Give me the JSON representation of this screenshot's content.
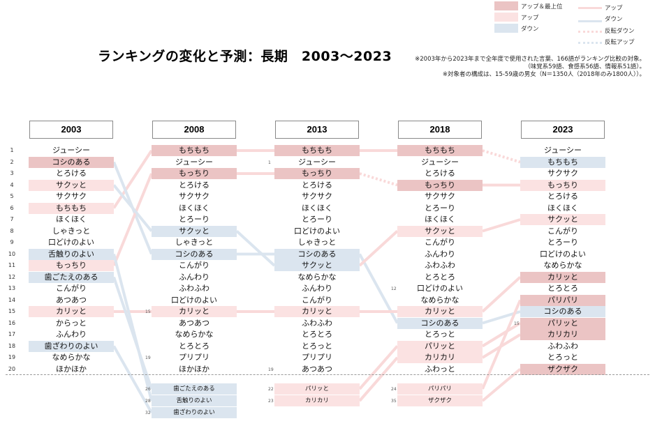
{
  "title": "ランキングの変化と予測：長期　2003〜2023",
  "notes": [
    "※2003年から2023年まで全年度で使用された言葉、166語がランキング比較の対象。",
    "（味覚系59語、食感系56語、情報系51語）。",
    "※対象者の構成は、15-59歳の男女（N＝1350人（2018年のみ1800人））。"
  ],
  "legend": {
    "up_best": "アップ＆最上位",
    "up": "アップ",
    "down": "ダウン",
    "line_up": "アップ",
    "line_down": "ダウン",
    "line_rev_down": "反転ダウン",
    "line_rev_up": "反転アップ"
  },
  "colors": {
    "up_best": "#ebc4c4",
    "up": "#fbe2e2",
    "down": "#dbe5ef",
    "line_up": "#f9d9d9",
    "line_down": "#dbe5ef"
  },
  "chart_data": {
    "type": "table",
    "years": [
      "2003",
      "2008",
      "2013",
      "2018",
      "2023"
    ],
    "rank_numbers": [
      "1",
      "2",
      "3",
      "4",
      "5",
      "6",
      "7",
      "8",
      "9",
      "10",
      "11",
      "12",
      "13",
      "14",
      "15",
      "16",
      "17",
      "18",
      "19",
      "20"
    ],
    "columns": [
      {
        "items": [
          {
            "label": "ジューシー",
            "hl": ""
          },
          {
            "label": "コシのある",
            "hl": "red"
          },
          {
            "label": "とろける",
            "hl": ""
          },
          {
            "label": "サクッと",
            "hl": "pink"
          },
          {
            "label": "サクサク",
            "hl": ""
          },
          {
            "label": "もちもち",
            "hl": "pink"
          },
          {
            "label": "ほくほく",
            "hl": ""
          },
          {
            "label": "しゃきっと",
            "hl": ""
          },
          {
            "label": "口どけのよい",
            "hl": ""
          },
          {
            "label": "舌触りのよい",
            "hl": "blue"
          },
          {
            "label": "もっちり",
            "hl": "pink"
          },
          {
            "label": "歯ごたえのある",
            "hl": "blue"
          },
          {
            "label": "こんがり",
            "hl": ""
          },
          {
            "label": "あつあつ",
            "hl": ""
          },
          {
            "label": "カリッと",
            "hl": "pink"
          },
          {
            "label": "からっと",
            "hl": ""
          },
          {
            "label": "ふんわり",
            "hl": ""
          },
          {
            "label": "歯ざわりのよい",
            "hl": "blue"
          },
          {
            "label": "なめらかな",
            "hl": ""
          },
          {
            "label": "ほかほか",
            "hl": ""
          }
        ],
        "below": []
      },
      {
        "items": [
          {
            "label": "もちもち",
            "hl": "red"
          },
          {
            "label": "ジューシー",
            "hl": ""
          },
          {
            "label": "もっちり",
            "hl": "red"
          },
          {
            "label": "とろける",
            "hl": ""
          },
          {
            "label": "サクサク",
            "hl": ""
          },
          {
            "label": "ほくほく",
            "hl": ""
          },
          {
            "label": "とろーり",
            "hl": ""
          },
          {
            "label": "サクッと",
            "hl": "blue"
          },
          {
            "label": "しゃきっと",
            "hl": ""
          },
          {
            "label": "コシのある",
            "hl": "blue"
          },
          {
            "label": "こんがり",
            "hl": ""
          },
          {
            "label": "ふんわり",
            "hl": ""
          },
          {
            "label": "ふわふわ",
            "hl": ""
          },
          {
            "label": "口どけのよい",
            "hl": ""
          },
          {
            "label": "カリッと",
            "hl": "pink"
          },
          {
            "label": "あつあつ",
            "hl": ""
          },
          {
            "label": "なめらかな",
            "hl": ""
          },
          {
            "label": "とろとろ",
            "hl": ""
          },
          {
            "label": "プリプリ",
            "hl": ""
          },
          {
            "label": "ほかほか",
            "hl": ""
          }
        ],
        "side_ranks": {
          "15": "15",
          "19": "19"
        },
        "below": [
          {
            "rank": "26",
            "label": "歯ごたえのある",
            "hl": "blue"
          },
          {
            "rank": "28",
            "label": "舌触りのよい",
            "hl": "blue"
          },
          {
            "rank": "32",
            "label": "歯ざわりのよい",
            "hl": "blue"
          }
        ]
      },
      {
        "items": [
          {
            "label": "もちもち",
            "hl": "red"
          },
          {
            "label": "ジューシー",
            "hl": ""
          },
          {
            "label": "もっちり",
            "hl": "red"
          },
          {
            "label": "とろける",
            "hl": ""
          },
          {
            "label": "サクサク",
            "hl": ""
          },
          {
            "label": "ほくほく",
            "hl": ""
          },
          {
            "label": "とろーり",
            "hl": ""
          },
          {
            "label": "口どけのよい",
            "hl": ""
          },
          {
            "label": "しゃきっと",
            "hl": ""
          },
          {
            "label": "コシのある",
            "hl": "blue"
          },
          {
            "label": "サクッと",
            "hl": "blue"
          },
          {
            "label": "なめらかな",
            "hl": ""
          },
          {
            "label": "ふんわり",
            "hl": ""
          },
          {
            "label": "こんがり",
            "hl": ""
          },
          {
            "label": "カリッと",
            "hl": "pink"
          },
          {
            "label": "ふわふわ",
            "hl": ""
          },
          {
            "label": "とろとろ",
            "hl": ""
          },
          {
            "label": "とろっと",
            "hl": ""
          },
          {
            "label": "プリプリ",
            "hl": ""
          },
          {
            "label": "あつあつ",
            "hl": ""
          }
        ],
        "side_ranks": {
          "2": "1",
          "20": "19"
        },
        "below": [
          {
            "rank": "22",
            "label": "パリッと",
            "hl": "pink"
          },
          {
            "rank": "23",
            "label": "カリカリ",
            "hl": "pink"
          }
        ]
      },
      {
        "items": [
          {
            "label": "もちもち",
            "hl": "red"
          },
          {
            "label": "ジューシー",
            "hl": ""
          },
          {
            "label": "とろける",
            "hl": ""
          },
          {
            "label": "もっちり",
            "hl": "red"
          },
          {
            "label": "サクサク",
            "hl": ""
          },
          {
            "label": "とろーり",
            "hl": ""
          },
          {
            "label": "ほくほく",
            "hl": ""
          },
          {
            "label": "サクッと",
            "hl": "pink"
          },
          {
            "label": "こんがり",
            "hl": ""
          },
          {
            "label": "ふんわり",
            "hl": ""
          },
          {
            "label": "ふわふわ",
            "hl": ""
          },
          {
            "label": "とろとろ",
            "hl": ""
          },
          {
            "label": "口どけのよい",
            "hl": ""
          },
          {
            "label": "なめらかな",
            "hl": ""
          },
          {
            "label": "カリッと",
            "hl": "pink"
          },
          {
            "label": "コシのある",
            "hl": "blue"
          },
          {
            "label": "とろっと",
            "hl": ""
          },
          {
            "label": "パリッと",
            "hl": "pink"
          },
          {
            "label": "カリカリ",
            "hl": "pink"
          },
          {
            "label": "ふわっと",
            "hl": ""
          }
        ],
        "side_ranks": {
          "13": "12"
        },
        "below": [
          {
            "rank": "24",
            "label": "パリパリ",
            "hl": "pink"
          },
          {
            "rank": "35",
            "label": "ザクザク",
            "hl": "pink"
          }
        ]
      },
      {
        "items": [
          {
            "label": "ジューシー",
            "hl": ""
          },
          {
            "label": "もちもち",
            "hl": "blue"
          },
          {
            "label": "サクサク",
            "hl": ""
          },
          {
            "label": "もっちり",
            "hl": "pink"
          },
          {
            "label": "とろける",
            "hl": ""
          },
          {
            "label": "ほくほく",
            "hl": ""
          },
          {
            "label": "サクッと",
            "hl": "pink"
          },
          {
            "label": "こんがり",
            "hl": ""
          },
          {
            "label": "とろーり",
            "hl": ""
          },
          {
            "label": "口どけのよい",
            "hl": ""
          },
          {
            "label": "なめらかな",
            "hl": ""
          },
          {
            "label": "カリッと",
            "hl": "red"
          },
          {
            "label": "とろとろ",
            "hl": ""
          },
          {
            "label": "パリパリ",
            "hl": "red"
          },
          {
            "label": "コシのある",
            "hl": "blue"
          },
          {
            "label": "パリッと",
            "hl": "red"
          },
          {
            "label": "カリカリ",
            "hl": "red"
          },
          {
            "label": "ふわふわ",
            "hl": ""
          },
          {
            "label": "とろっと",
            "hl": ""
          },
          {
            "label": "ザクザク",
            "hl": "red"
          }
        ],
        "side_ranks": {
          "16": "15"
        },
        "below": []
      }
    ],
    "connections": [
      {
        "word": "もちもち",
        "style": "up",
        "path": [
          [
            0,
            6
          ],
          [
            1,
            1
          ],
          [
            2,
            1
          ],
          [
            3,
            1
          ]
        ]
      },
      {
        "word": "もちもち",
        "style": "rev_down",
        "path": [
          [
            3,
            1
          ],
          [
            4,
            2
          ]
        ]
      },
      {
        "word": "コシのある",
        "style": "down",
        "path": [
          [
            0,
            2
          ],
          [
            1,
            10
          ],
          [
            2,
            10
          ],
          [
            3,
            16
          ],
          [
            4,
            15
          ]
        ]
      },
      {
        "word": "もっちり",
        "style": "up",
        "path": [
          [
            0,
            11
          ],
          [
            1,
            3
          ],
          [
            2,
            3
          ]
        ]
      },
      {
        "word": "もっちり",
        "style": "rev_down",
        "path": [
          [
            2,
            3
          ],
          [
            3,
            4
          ]
        ]
      },
      {
        "word": "もっちり",
        "style": "up",
        "path": [
          [
            3,
            4
          ],
          [
            4,
            4
          ]
        ]
      },
      {
        "word": "サクッと",
        "style": "down",
        "path": [
          [
            0,
            4
          ],
          [
            1,
            8
          ],
          [
            2,
            11
          ]
        ]
      },
      {
        "word": "サクッと",
        "style": "up",
        "path": [
          [
            2,
            11
          ],
          [
            3,
            8
          ],
          [
            4,
            7
          ]
        ]
      },
      {
        "word": "カリッと",
        "style": "up",
        "path": [
          [
            0,
            15
          ],
          [
            1,
            15
          ],
          [
            2,
            15
          ],
          [
            3,
            15
          ],
          [
            4,
            12
          ]
        ]
      },
      {
        "word": "舌触りのよい",
        "style": "down",
        "path": [
          [
            0,
            10
          ],
          [
            1,
            22
          ]
        ]
      },
      {
        "word": "歯ごたえのある",
        "style": "down",
        "path": [
          [
            0,
            12
          ],
          [
            1,
            21
          ]
        ]
      },
      {
        "word": "歯ざわりのよい",
        "style": "down",
        "path": [
          [
            0,
            18
          ],
          [
            1,
            23
          ]
        ]
      },
      {
        "word": "パリッと",
        "style": "up",
        "path": [
          [
            2,
            21
          ],
          [
            3,
            18
          ],
          [
            4,
            16
          ]
        ]
      },
      {
        "word": "カリカリ",
        "style": "up",
        "path": [
          [
            2,
            22
          ],
          [
            3,
            19
          ],
          [
            4,
            17
          ]
        ]
      },
      {
        "word": "パリパリ",
        "style": "up",
        "path": [
          [
            3,
            21
          ],
          [
            4,
            14
          ]
        ]
      },
      {
        "word": "ザクザク",
        "style": "up",
        "path": [
          [
            3,
            22
          ],
          [
            4,
            20
          ]
        ]
      }
    ]
  }
}
